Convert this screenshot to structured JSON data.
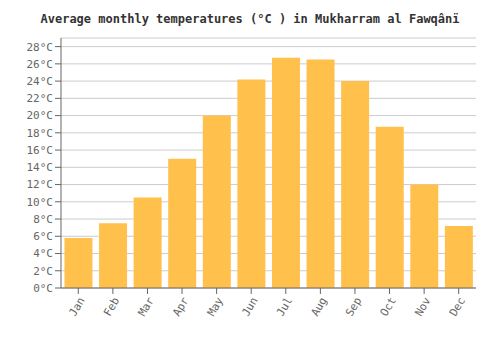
{
  "chart_data": {
    "type": "bar",
    "title": "Average monthly temperatures (°C ) in Mukharram al Fawqânï",
    "categories": [
      "Jan",
      "Feb",
      "Mar",
      "Apr",
      "May",
      "Jun",
      "Jul",
      "Aug",
      "Sep",
      "Oct",
      "Nov",
      "Dec"
    ],
    "values": [
      5.8,
      7.5,
      10.5,
      15.0,
      20.0,
      24.2,
      26.7,
      26.5,
      24.0,
      18.7,
      12.0,
      7.2
    ],
    "color": "#FFC04C",
    "ylim": [
      0,
      29
    ],
    "yticks": [
      {
        "value": 0,
        "label": "0°C"
      },
      {
        "value": 2,
        "label": "2°C"
      },
      {
        "value": 4,
        "label": "4°C"
      },
      {
        "value": 6,
        "label": "6°C"
      },
      {
        "value": 8,
        "label": "8°C"
      },
      {
        "value": 10,
        "label": "10°C"
      },
      {
        "value": 12,
        "label": "12°C"
      },
      {
        "value": 14,
        "label": "14°C"
      },
      {
        "value": 16,
        "label": "16°C"
      },
      {
        "value": 18,
        "label": "18°C"
      },
      {
        "value": 20,
        "label": "20°C"
      },
      {
        "value": 22,
        "label": "22°C"
      },
      {
        "value": 24,
        "label": "24°C"
      },
      {
        "value": 26,
        "label": "26°C"
      },
      {
        "value": 28,
        "label": "28°C"
      }
    ],
    "grid": true
  }
}
